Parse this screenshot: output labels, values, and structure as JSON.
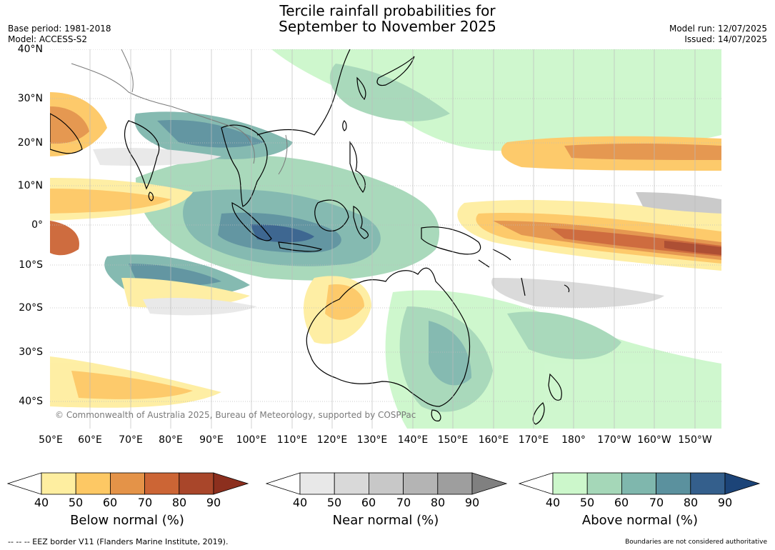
{
  "title_line1": "Tercile rainfall probabilities for",
  "title_line2": "September to November 2025",
  "base_period": "Base period: 1981-2018",
  "model": "Model: ACCESS-S2",
  "model_run": "Model run: 12/07/2025",
  "issued": "Issued: 14/07/2025",
  "copyright": "© Commonwealth of Australia 2025, Bureau of Meteorology, supported by COSPPac",
  "lat_labels": [
    "40°N",
    "30°N",
    "20°N",
    "10°N",
    "0°",
    "10°S",
    "20°S",
    "30°S",
    "40°S"
  ],
  "lon_labels": [
    "50°E",
    "60°E",
    "70°E",
    "80°E",
    "90°E",
    "100°E",
    "110°E",
    "120°E",
    "130°E",
    "140°E",
    "150°E",
    "160°E",
    "170°E",
    "180°",
    "170°W",
    "160°W",
    "150°W"
  ],
  "colorbars": [
    {
      "title": "Below normal (%)",
      "ticks": [
        "40",
        "50",
        "60",
        "70",
        "80",
        "90"
      ],
      "colors": [
        "#ffffff",
        "#feeea0",
        "#fdc864",
        "#e49348",
        "#cc6535",
        "#a9462a",
        "#8c2f1e"
      ]
    },
    {
      "title": "Near normal (%)",
      "ticks": [
        "40",
        "50",
        "60",
        "70",
        "80",
        "90"
      ],
      "colors": [
        "#ffffff",
        "#e8e8e8",
        "#d9d9d9",
        "#c8c8c8",
        "#b4b4b4",
        "#9e9e9e",
        "#808080"
      ]
    },
    {
      "title": "Above normal (%)",
      "ticks": [
        "40",
        "50",
        "60",
        "70",
        "80",
        "90"
      ],
      "colors": [
        "#ffffff",
        "#ccf7cb",
        "#a5d7b8",
        "#7fb7ad",
        "#5b919e",
        "#345f8c",
        "#1c4478"
      ]
    }
  ],
  "footer_left": "--  --  -- EEZ border V11 (Flanders Marine Institute, 2019).",
  "footer_right": "Boundaries are not considered authoritative"
}
